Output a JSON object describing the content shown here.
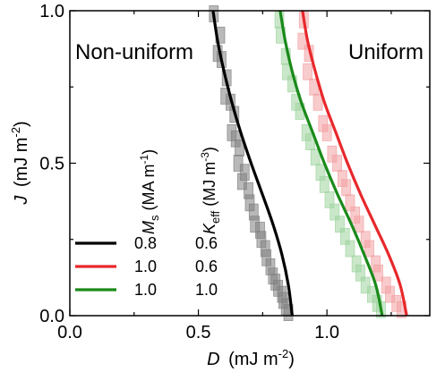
{
  "chart_data": {
    "type": "line",
    "title": "",
    "xlabel": {
      "symbol": "D",
      "unit": "(mJ m",
      "exp": "-2",
      "close": ")"
    },
    "ylabel": {
      "symbol": "J",
      "unit": "(mJ m",
      "exp": "-2",
      "close": ")"
    },
    "xlim": [
      0.0,
      1.4
    ],
    "ylim": [
      0.0,
      1.0
    ],
    "xticks": [
      {
        "value": 0.0,
        "label": "0.0"
      },
      {
        "value": 0.5,
        "label": "0.5"
      },
      {
        "value": 1.0,
        "label": "1.0"
      }
    ],
    "yticks": [
      {
        "value": 0.0,
        "label": "0.0"
      },
      {
        "value": 0.5,
        "label": "0.5"
      },
      {
        "value": 1.0,
        "label": "1.0"
      }
    ],
    "annotations": {
      "left": "Non-uniform",
      "right": "Uniform"
    },
    "legend": {
      "placement": "lower-left",
      "header_ms": {
        "base": "M",
        "sub": "s",
        "unit": " (MA m",
        "exp": "-1",
        "close": ")"
      },
      "header_keff": {
        "base": "K",
        "sub": "eff",
        "unit": " (MJ m",
        "exp": "-3",
        "close": ")"
      }
    },
    "series": [
      {
        "ms": "0.8",
        "keff": "0.6",
        "color": "#000000",
        "marker_color": "#7f7f7f",
        "x": [
          0.557,
          0.575,
          0.6,
          0.63,
          0.665,
          0.705,
          0.748,
          0.79,
          0.825,
          0.85,
          0.865
        ],
        "y": [
          1.0,
          0.9,
          0.8,
          0.7,
          0.6,
          0.5,
          0.4,
          0.3,
          0.2,
          0.1,
          0.0
        ]
      },
      {
        "ms": "1.0",
        "keff": "0.6",
        "color": "#e8282b",
        "marker_color": "#f2a0a2",
        "x": [
          0.905,
          0.925,
          0.955,
          0.99,
          1.035,
          1.08,
          1.13,
          1.185,
          1.24,
          1.285,
          1.31
        ],
        "y": [
          1.0,
          0.9,
          0.8,
          0.7,
          0.6,
          0.5,
          0.4,
          0.3,
          0.2,
          0.1,
          0.0
        ]
      },
      {
        "ms": "1.0",
        "keff": "1.0",
        "color": "#1a8a1a",
        "marker_color": "#9fd49f",
        "x": [
          0.818,
          0.838,
          0.865,
          0.9,
          0.945,
          0.99,
          1.04,
          1.095,
          1.145,
          1.19,
          1.215
        ],
        "y": [
          1.0,
          0.9,
          0.8,
          0.7,
          0.6,
          0.5,
          0.4,
          0.3,
          0.2,
          0.1,
          0.0
        ]
      }
    ],
    "scatter": [
      {
        "series_index": 0,
        "x": [
          0.56,
          0.585,
          0.575,
          0.59,
          0.61,
          0.605,
          0.625,
          0.64,
          0.63,
          0.645,
          0.66,
          0.655,
          0.68,
          0.67,
          0.695,
          0.7,
          0.715,
          0.72,
          0.74,
          0.745,
          0.76,
          0.765,
          0.78,
          0.79,
          0.8,
          0.81,
          0.825,
          0.83,
          0.84,
          0.85
        ],
        "y": [
          0.99,
          0.92,
          0.86,
          0.84,
          0.78,
          0.72,
          0.7,
          0.66,
          0.6,
          0.58,
          0.55,
          0.5,
          0.47,
          0.44,
          0.41,
          0.37,
          0.34,
          0.3,
          0.28,
          0.25,
          0.22,
          0.19,
          0.16,
          0.13,
          0.11,
          0.09,
          0.07,
          0.05,
          0.03,
          0.01
        ]
      },
      {
        "series_index": 1,
        "x": [
          0.91,
          0.905,
          0.93,
          0.925,
          0.95,
          0.965,
          0.985,
          1.0,
          1.02,
          1.04,
          1.06,
          1.075,
          1.09,
          1.11,
          1.125,
          1.15,
          1.165,
          1.19,
          1.2,
          1.23,
          1.245,
          1.27,
          1.29
        ],
        "y": [
          0.97,
          0.9,
          0.86,
          0.8,
          0.75,
          0.7,
          0.63,
          0.6,
          0.53,
          0.5,
          0.45,
          0.42,
          0.37,
          0.33,
          0.3,
          0.25,
          0.22,
          0.17,
          0.14,
          0.1,
          0.07,
          0.04,
          0.02
        ]
      },
      {
        "series_index": 2,
        "x": [
          0.815,
          0.82,
          0.84,
          0.845,
          0.865,
          0.88,
          0.895,
          0.92,
          0.935,
          0.955,
          0.975,
          0.99,
          1.01,
          1.03,
          1.05,
          1.07,
          1.09,
          1.115,
          1.13,
          1.15,
          1.175,
          1.195,
          1.21
        ],
        "y": [
          0.97,
          0.92,
          0.85,
          0.8,
          0.76,
          0.7,
          0.67,
          0.6,
          0.57,
          0.52,
          0.47,
          0.43,
          0.38,
          0.34,
          0.3,
          0.26,
          0.22,
          0.17,
          0.14,
          0.1,
          0.07,
          0.04,
          0.02
        ]
      }
    ]
  }
}
